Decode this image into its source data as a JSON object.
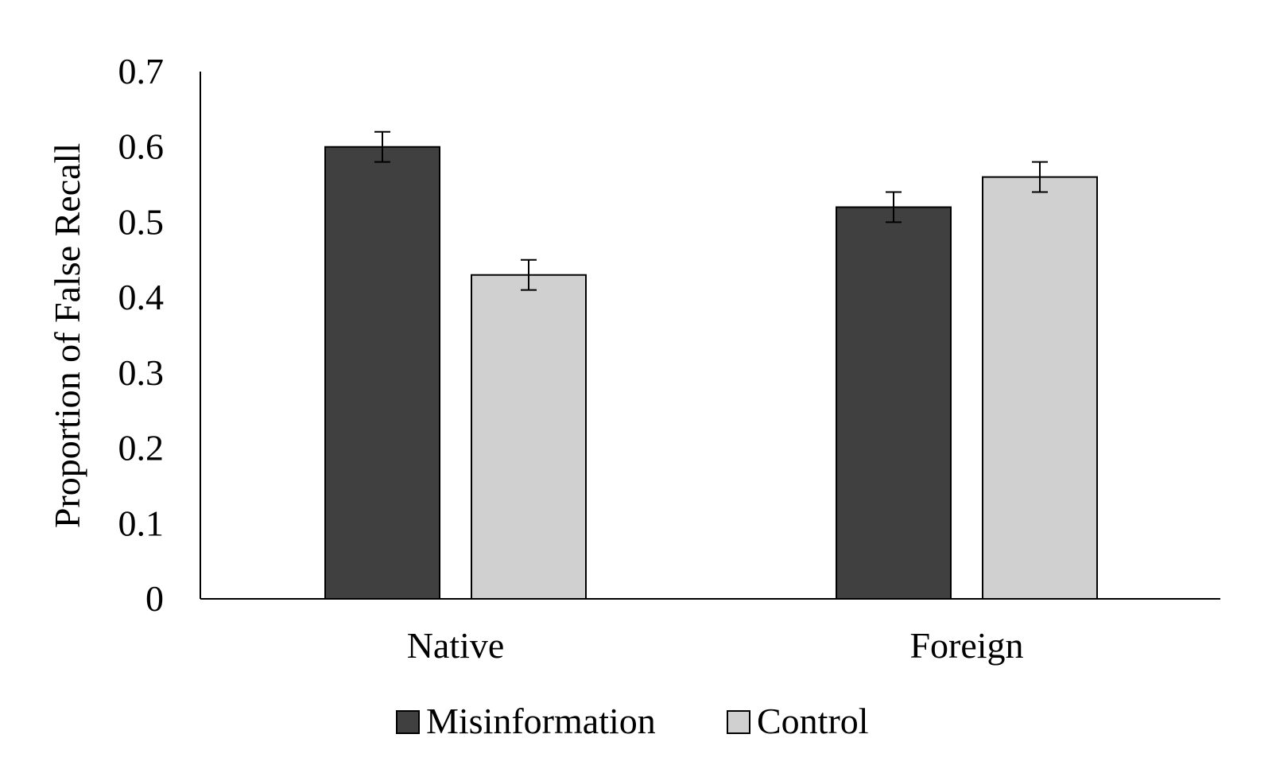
{
  "chart_data": {
    "type": "bar",
    "title": "",
    "xlabel": "",
    "ylabel": "Proportion of False Recall",
    "ylim": [
      0,
      0.7
    ],
    "yticks": [
      "0",
      "0.1",
      "0.2",
      "0.3",
      "0.4",
      "0.5",
      "0.6",
      "0.7"
    ],
    "categories": [
      "Native",
      "Foreign"
    ],
    "series": [
      {
        "name": "Misinformation",
        "color": "#404040",
        "values": [
          0.6,
          0.52
        ],
        "error": [
          0.02,
          0.02
        ]
      },
      {
        "name": "Control",
        "color": "#d0d0d0",
        "values": [
          0.43,
          0.56
        ],
        "error": [
          0.02,
          0.02
        ]
      }
    ],
    "legend_position": "bottom",
    "grid": false,
    "error_bars": true
  }
}
